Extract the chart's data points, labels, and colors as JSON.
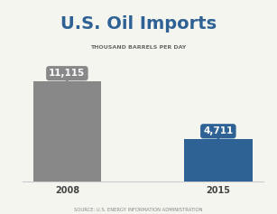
{
  "title": "U.S. Oil Imports",
  "subtitle": "THOUSAND BARRELS PER DAY",
  "source": "SOURCE: U.S. ENERGY INFORMATION ADMINISTRATION",
  "categories": [
    "2008",
    "2015"
  ],
  "values": [
    11115,
    4711
  ],
  "labels": [
    "11,115",
    "4,711"
  ],
  "bar_colors": [
    "#888888",
    "#2e6294"
  ],
  "label_bg_colors": [
    "#888888",
    "#2e6294"
  ],
  "title_color": "#2e6294",
  "subtitle_color": "#666666",
  "source_color": "#888888",
  "xlabel_color": "#555555",
  "background_color": "#f5f5f0",
  "ylim": [
    0,
    13500
  ],
  "bar_width": 0.45
}
